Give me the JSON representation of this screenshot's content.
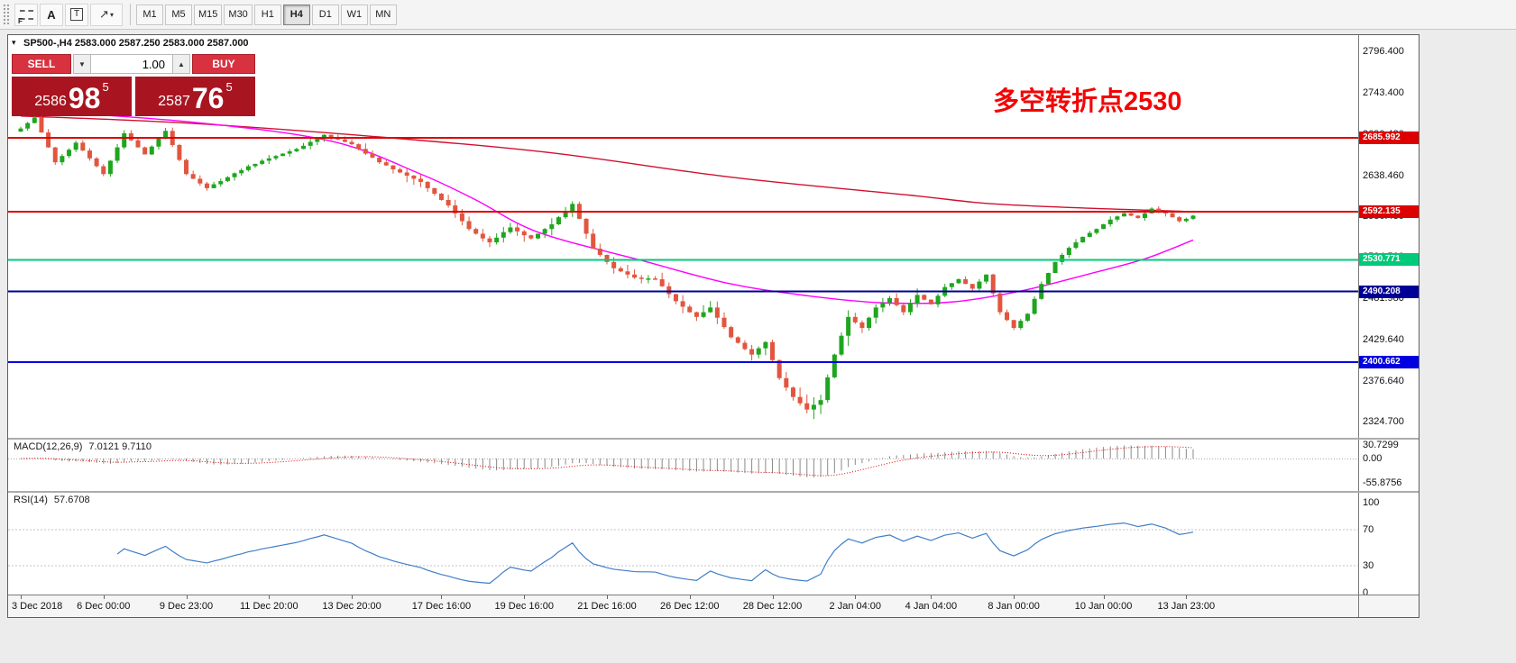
{
  "toolbar": {
    "icons": {
      "fibonacci": "F",
      "text": "A",
      "textbox": "T",
      "arrow": "↗",
      "caret": "▾"
    },
    "timeframes": [
      "M1",
      "M5",
      "M15",
      "M30",
      "H1",
      "H4",
      "D1",
      "W1",
      "MN"
    ],
    "active_timeframe": "H4"
  },
  "trade": {
    "sell_label": "SELL",
    "buy_label": "BUY",
    "volume": "1.00",
    "sell_price": {
      "main": "2586",
      "big": "98",
      "sup": "5"
    },
    "buy_price": {
      "main": "2587",
      "big": "76",
      "sup": "5"
    }
  },
  "annotation": {
    "text": "多空转折点2530",
    "color": "#f30505"
  },
  "chart_data": {
    "type": "candlestick",
    "symbol": "SP500-",
    "timeframe": "H4",
    "header": "SP500-,H4  2583.000 2587.250 2583.000 2587.000",
    "ohlc_header": {
      "open": "2583.000",
      "high": "2587.250",
      "low": "2583.000",
      "close": "2587.000"
    },
    "ylim": [
      2304,
      2817
    ],
    "price_axis_labels": [
      "2796.400",
      "2743.400",
      "2690.420",
      "2638.460",
      "2586.480",
      "2534.500",
      "2481.980",
      "2429.640",
      "2376.640",
      "2324.700"
    ],
    "up_color": "#1fa51f",
    "down_color": "#e2553e",
    "hlines": [
      {
        "price": 2685.992,
        "label": "2685.992",
        "color": "#dd0000"
      },
      {
        "price": 2592.135,
        "label": "2592.135",
        "color": "#dd0000"
      },
      {
        "price": 2530.771,
        "label": "2530.771",
        "color": "#00c97a"
      },
      {
        "price": 2490.208,
        "label": "2490.208",
        "color": "#000096"
      },
      {
        "price": 2400.662,
        "label": "2400.662",
        "color": "#0000e0"
      }
    ],
    "ma_slow": {
      "name": "MA slow",
      "color": "#d01030",
      "anchors": [
        [
          0,
          2714
        ],
        [
          24,
          2705
        ],
        [
          51,
          2688
        ],
        [
          77,
          2667
        ],
        [
          103,
          2636
        ],
        [
          129,
          2613
        ],
        [
          143,
          2601
        ],
        [
          170,
          2592
        ]
      ]
    },
    "ma_fast": {
      "name": "MA fast",
      "color": "#ff00ff",
      "anchors": [
        [
          0,
          2722
        ],
        [
          25,
          2706
        ],
        [
          45,
          2682
        ],
        [
          58,
          2640
        ],
        [
          66,
          2607
        ],
        [
          75,
          2566
        ],
        [
          90,
          2530
        ],
        [
          103,
          2500
        ],
        [
          115,
          2484
        ],
        [
          125,
          2476
        ],
        [
          135,
          2477
        ],
        [
          145,
          2491
        ],
        [
          155,
          2513
        ],
        [
          163,
          2532
        ],
        [
          170,
          2556
        ]
      ]
    },
    "closes": [
      2698,
      2705,
      2712,
      2693,
      2674,
      2655,
      2663,
      2671,
      2680,
      2670,
      2660,
      2650,
      2640,
      2657,
      2674,
      2692,
      2683,
      2674,
      2665,
      2675,
      2685,
      2695,
      2677,
      2658,
      2640,
      2634,
      2628,
      2622,
      2627,
      2631,
      2636,
      2641,
      2645,
      2650,
      2653,
      2657,
      2660,
      2663,
      2666,
      2669,
      2672,
      2676,
      2681,
      2685,
      2690,
      2687,
      2684,
      2681,
      2678,
      2672,
      2666,
      2661,
      2655,
      2651,
      2646,
      2642,
      2638,
      2634,
      2630,
      2622,
      2615,
      2607,
      2600,
      2590,
      2580,
      2570,
      2564,
      2558,
      2553,
      2559,
      2566,
      2572,
      2567,
      2562,
      2558,
      2564,
      2570,
      2576,
      2585,
      2593,
      2602,
      2583,
      2564,
      2545,
      2537,
      2528,
      2520,
      2516,
      2512,
      2508,
      2507,
      2507,
      2506,
      2497,
      2487,
      2478,
      2471,
      2464,
      2458,
      2464,
      2470,
      2457,
      2445,
      2432,
      2425,
      2417,
      2410,
      2418,
      2426,
      2403,
      2380,
      2368,
      2356,
      2348,
      2340,
      2346,
      2352,
      2381,
      2410,
      2434,
      2458,
      2451,
      2444,
      2457,
      2470,
      2476,
      2482,
      2473,
      2464,
      2475,
      2486,
      2480,
      2474,
      2485,
      2496,
      2501,
      2506,
      2500,
      2494,
      2503,
      2512,
      2488,
      2464,
      2454,
      2444,
      2453,
      2462,
      2481,
      2500,
      2514,
      2528,
      2537,
      2546,
      2553,
      2560,
      2565,
      2570,
      2576,
      2582,
      2586,
      2590,
      2587,
      2584,
      2590,
      2596,
      2593,
      2590,
      2585,
      2580,
      2583,
      2587
    ],
    "time_ticks": [
      {
        "i": 0,
        "label": "3 Dec 2018"
      },
      {
        "i": 12,
        "label": "6 Dec 00:00"
      },
      {
        "i": 24,
        "label": "9 Dec 23:00"
      },
      {
        "i": 36,
        "label": "11 Dec 20:00"
      },
      {
        "i": 48,
        "label": "13 Dec 20:00"
      },
      {
        "i": 61,
        "label": "17 Dec 16:00"
      },
      {
        "i": 73,
        "label": "19 Dec 16:00"
      },
      {
        "i": 85,
        "label": "21 Dec 16:00"
      },
      {
        "i": 97,
        "label": "26 Dec 12:00"
      },
      {
        "i": 109,
        "label": "28 Dec 12:00"
      },
      {
        "i": 121,
        "label": "2 Jan 04:00"
      },
      {
        "i": 132,
        "label": "4 Jan 04:00"
      },
      {
        "i": 144,
        "label": "8 Jan 00:00"
      },
      {
        "i": 157,
        "label": "10 Jan 00:00"
      },
      {
        "i": 169,
        "label": "13 Jan 23:00"
      }
    ],
    "macd": {
      "label": "MACD(12,26,9)",
      "values": "7.0121 9.7110",
      "params": [
        12,
        26,
        9
      ],
      "axis_labels": [
        "30.7299",
        "0.00",
        "-55.8756"
      ],
      "hist_color": "#8a8a8a",
      "signal_color": "#e00000"
    },
    "rsi": {
      "label": "RSI(14)",
      "value": "57.6708",
      "period": 14,
      "axis_labels": [
        "100",
        "70",
        "30",
        "0"
      ],
      "levels": [
        70,
        30
      ],
      "line_color": "#3f7ec8"
    }
  }
}
